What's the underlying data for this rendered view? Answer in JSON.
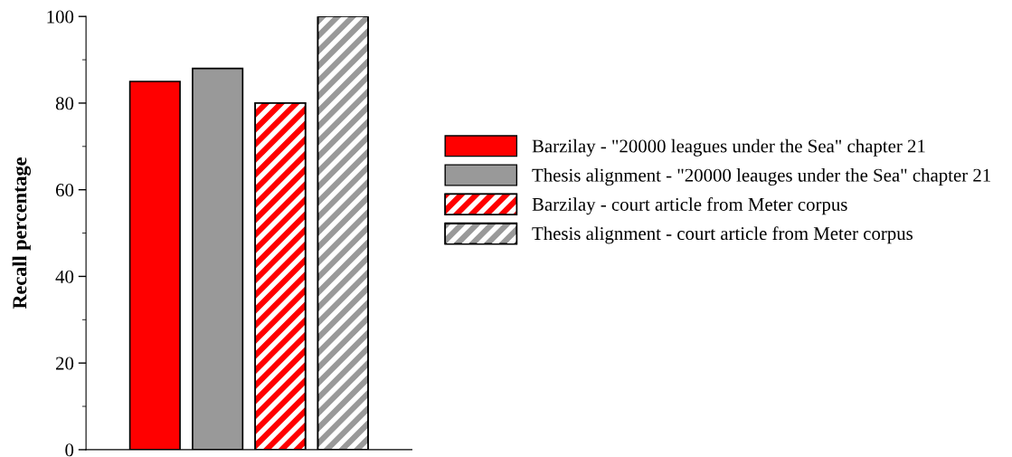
{
  "chart_data": {
    "type": "bar",
    "ylabel": "Recall percentage",
    "categories": [
      null
    ],
    "series": [
      {
        "name": "Barzilay - \"20000 leagues under the Sea\" chapter 21",
        "color": "#ff0000",
        "values": [
          85
        ]
      },
      {
        "name": "Thesis alignment - \"20000 leauges under the Sea\" chapter 21",
        "color": "#999999",
        "values": [
          88
        ]
      },
      {
        "name": "Barzilay - court article from Meter corpus",
        "color": "#ff0000",
        "values": [
          80
        ]
      },
      {
        "name": "Thesis alignment - court article from Meter corpus",
        "color": "#999999",
        "values": [
          100
        ]
      }
    ],
    "ylim": [
      0,
      100
    ],
    "yticks": [
      0,
      20,
      40,
      60,
      80,
      100
    ],
    "grid": false,
    "legend": "right",
    "tick_labels": "y"
  }
}
